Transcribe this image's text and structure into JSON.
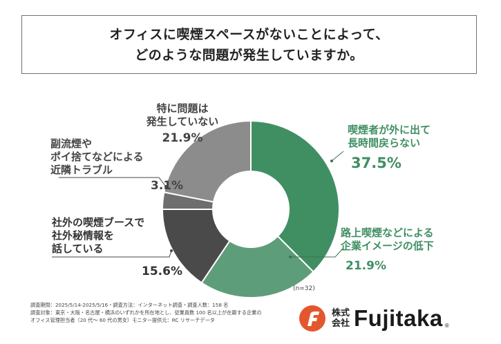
{
  "title": {
    "line1": "オフィスに喫煙スペースがないことによって、",
    "line2": "どのような問題が発生していますか。"
  },
  "chart_data": {
    "type": "pie",
    "style": "donut",
    "slices": [
      {
        "label_lines": [
          "喫煙者が外に出て",
          "長時間戻らない"
        ],
        "value": 37.5,
        "value_label": "37.5%",
        "color": "#3f8f63"
      },
      {
        "label_lines": [
          "路上喫煙などによる",
          "企業イメージの低下"
        ],
        "value": 21.9,
        "value_label": "21.9%",
        "color": "#5e9d79"
      },
      {
        "label_lines": [
          "社外の喫煙ブースで",
          "社外秘情報を",
          "話している"
        ],
        "value": 15.6,
        "value_label": "15.6%",
        "color": "#4a4a4a"
      },
      {
        "label_lines": [
          "副流煙や",
          "ポイ捨てなどによる",
          "近隣トラブル"
        ],
        "value": 3.1,
        "value_label": "3.1%",
        "color": "#6e6e6e"
      },
      {
        "label_lines": [
          "特に問題は",
          "発生していない"
        ],
        "value": 21.9,
        "value_label": "21.9%",
        "color": "#8c8c8c"
      }
    ],
    "n_label": "(n=32)"
  },
  "footnote": {
    "line1": "調査期間：2025/5/14-2025/5/16・調査方法：インターネット調査・調査人数：158 名",
    "line2": "調査対象：東京・大阪・名古屋・横浜のいずれかを所在地とし、従業員数 100 名以上が在籍する企業の",
    "line3": "オフィス管理担当者（20 代～ 60 代の男女）モニター提供元：RC リサーチデータ"
  },
  "logo": {
    "kanji_top": "株式",
    "kanji_bottom": "会社",
    "name": "Fujitaka",
    "reg": "®",
    "colors": {
      "outer": "#e4572e",
      "inner": "#f39a2b"
    }
  }
}
